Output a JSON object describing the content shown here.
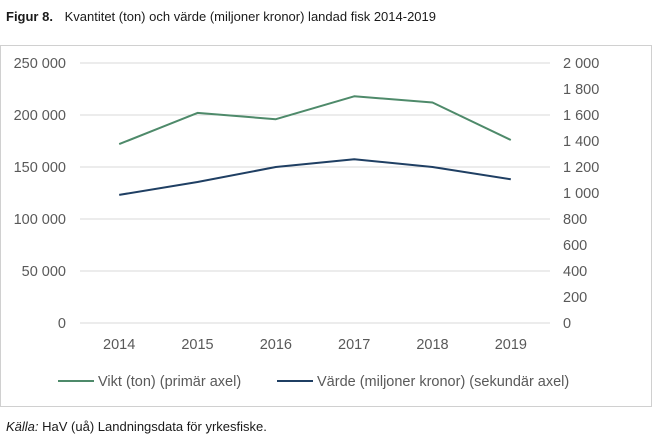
{
  "figure": {
    "label": "Figur 8.",
    "title": "Kvantitet (ton) och värde (miljoner kronor) landad fisk 2014-2019"
  },
  "source": {
    "label": "Källa:",
    "text": "HaV (uå) Landningsdata för yrkesfiske."
  },
  "colors": {
    "vikt": "#4e8a6a",
    "varde": "#1f3f63",
    "grid": "#d9d9d9",
    "axis_text": "#595959"
  },
  "chart_data": {
    "type": "line",
    "title": "Kvantitet (ton) och värde (miljoner kronor) landad fisk 2014-2019",
    "categories": [
      "2014",
      "2015",
      "2016",
      "2017",
      "2018",
      "2019"
    ],
    "series": [
      {
        "name": "Vikt (ton) (primär axel)",
        "axis": "primary",
        "values": [
          172000,
          202000,
          196000,
          218000,
          212000,
          176000
        ]
      },
      {
        "name": "Värde (miljoner kronor) (sekundär axel)",
        "axis": "secondary",
        "values": [
          985,
          1085,
          1200,
          1260,
          1200,
          1105
        ]
      }
    ],
    "y_primary": {
      "min": 0,
      "max": 250000,
      "ticks": [
        "0",
        "50 000",
        "100 000",
        "150 000",
        "200 000",
        "250 000"
      ]
    },
    "y_secondary": {
      "min": 0,
      "max": 2000,
      "ticks": [
        "0",
        "200",
        "400",
        "600",
        "800",
        "1 000",
        "1 200",
        "1 400",
        "1 600",
        "1 800",
        "2 000"
      ]
    },
    "grid": true,
    "legend_position": "bottom"
  }
}
